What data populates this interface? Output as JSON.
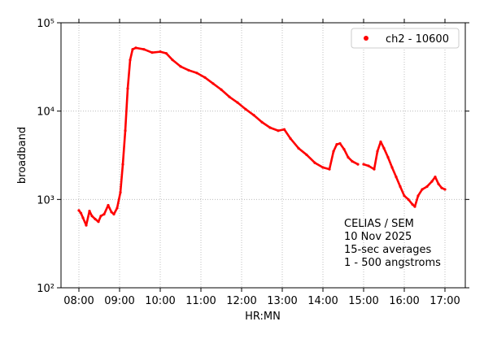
{
  "chart_data": {
    "type": "line",
    "x_label": "HR:MN",
    "y_label": "broadband",
    "log_y": true,
    "grid": true,
    "legend_position": "upper right",
    "annotation": [
      "CELIAS / SEM",
      "10 Nov 2025",
      "15-sec averages",
      "1 - 500 angstroms"
    ],
    "xlim": [
      7.56,
      17.5
    ],
    "ylim": [
      100,
      100000
    ],
    "xticks": [
      {
        "value": 8,
        "label": "08:00"
      },
      {
        "value": 9,
        "label": "09:00"
      },
      {
        "value": 10,
        "label": "10:00"
      },
      {
        "value": 11,
        "label": "11:00"
      },
      {
        "value": 12,
        "label": "12:00"
      },
      {
        "value": 13,
        "label": "13:00"
      },
      {
        "value": 14,
        "label": "14:00"
      },
      {
        "value": 15,
        "label": "15:00"
      },
      {
        "value": 16,
        "label": "16:00"
      },
      {
        "value": 17,
        "label": "17:00"
      }
    ],
    "yticks": [
      {
        "value": 100,
        "label": "10²"
      },
      {
        "value": 1000,
        "label": "10³"
      },
      {
        "value": 10000,
        "label": "10⁴"
      },
      {
        "value": 100000,
        "label": "10⁵"
      }
    ],
    "x": [
      8.0,
      8.05,
      8.1,
      8.18,
      8.26,
      8.32,
      8.4,
      8.48,
      8.54,
      8.62,
      8.72,
      8.8,
      8.86,
      8.94,
      9.02,
      9.08,
      9.14,
      9.2,
      9.26,
      9.32,
      9.4,
      9.6,
      9.8,
      10.0,
      10.15,
      10.3,
      10.5,
      10.7,
      10.9,
      11.1,
      11.3,
      11.5,
      11.7,
      11.9,
      12.1,
      12.3,
      12.5,
      12.7,
      12.9,
      13.05,
      13.2,
      13.4,
      13.6,
      13.8,
      14.0,
      14.16,
      14.26,
      14.34,
      14.42,
      14.52,
      14.62,
      14.72,
      14.86,
      14.93,
      15.0,
      15.12,
      15.26,
      15.34,
      15.42,
      15.5,
      15.6,
      15.7,
      15.8,
      15.9,
      16.0,
      16.1,
      16.2,
      16.26,
      16.34,
      16.44,
      16.56,
      16.68,
      16.76,
      16.84,
      16.92,
      17.0
    ],
    "series": [
      {
        "name": "ch2 - 10600",
        "color": "#ff0000",
        "values": [
          750,
          700,
          620,
          510,
          740,
          650,
          600,
          560,
          650,
          680,
          860,
          720,
          680,
          800,
          1200,
          2500,
          6000,
          18000,
          38000,
          50000,
          52000,
          50000,
          46000,
          47000,
          45000,
          38000,
          32000,
          29000,
          27000,
          24000,
          20500,
          17500,
          14500,
          12500,
          10500,
          9000,
          7500,
          6500,
          6000,
          6200,
          4900,
          3800,
          3200,
          2600,
          2300,
          2200,
          3500,
          4200,
          4300,
          3700,
          3000,
          2700,
          2500,
          null,
          2500,
          2400,
          2200,
          3500,
          4500,
          3800,
          3000,
          2300,
          1800,
          1400,
          1100,
          1000,
          880,
          830,
          1100,
          1300,
          1400,
          1600,
          1800,
          1500,
          1350,
          1300
        ]
      }
    ]
  }
}
